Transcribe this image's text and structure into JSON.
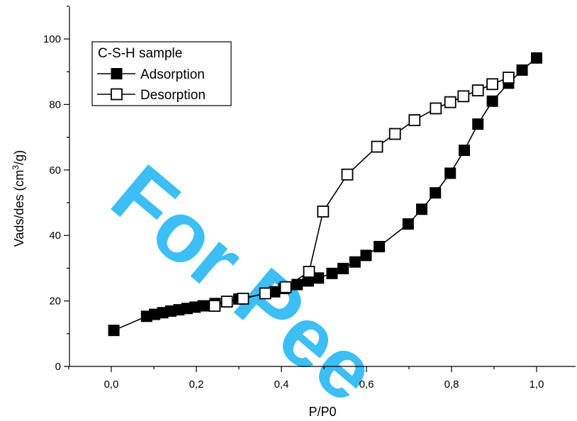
{
  "chart_data": {
    "type": "line",
    "title": "",
    "xlabel": "P/P0",
    "ylabel": "Vads/des (cm³/g)",
    "ylabel_parts": {
      "main": "Vads/des (cm",
      "sup": "3",
      "end": "/g)"
    },
    "xlim": [
      -0.1,
      1.1
    ],
    "ylim": [
      0,
      110
    ],
    "x_ticks": [
      0.0,
      0.2,
      0.4,
      0.6,
      0.8,
      1.0
    ],
    "x_tick_labels": [
      "0,0",
      "0,2",
      "0,4",
      "0,6",
      "0,8",
      "1,0"
    ],
    "y_ticks": [
      0,
      20,
      40,
      60,
      80,
      100
    ],
    "y_tick_labels": [
      "0",
      "20",
      "40",
      "60",
      "80",
      "100"
    ],
    "grid": false,
    "legend": {
      "title": "C-S-H sample",
      "placement": "top-left"
    },
    "series": [
      {
        "name": "Adsorption",
        "marker": "filled-square",
        "color": "#000000",
        "x": [
          0.006,
          0.083,
          0.102,
          0.121,
          0.14,
          0.159,
          0.178,
          0.197,
          0.216,
          0.244,
          0.272,
          0.3,
          0.384,
          0.406,
          0.437,
          0.463,
          0.487,
          0.519,
          0.545,
          0.573,
          0.599,
          0.63,
          0.698,
          0.73,
          0.762,
          0.797,
          0.83,
          0.862,
          0.896,
          0.934,
          0.966,
          1.0
        ],
        "y": [
          11.0,
          15.3,
          15.9,
          16.4,
          16.9,
          17.3,
          17.7,
          18.1,
          18.5,
          19.2,
          19.8,
          20.6,
          22.8,
          23.8,
          25.0,
          26.1,
          27.0,
          28.4,
          29.9,
          31.9,
          33.9,
          36.6,
          43.5,
          48.0,
          53.0,
          59.0,
          66.0,
          74.0,
          81.0,
          86.5,
          90.5,
          94.2
        ]
      },
      {
        "name": "Desorption",
        "marker": "open-square",
        "color": "#000000",
        "x": [
          0.243,
          0.272,
          0.31,
          0.362,
          0.41,
          0.465,
          0.498,
          0.555,
          0.625,
          0.667,
          0.713,
          0.763,
          0.797,
          0.828,
          0.862,
          0.896,
          0.934
        ],
        "y": [
          18.5,
          19.8,
          20.7,
          22.3,
          24.2,
          28.9,
          47.3,
          58.6,
          67.1,
          71.0,
          75.2,
          78.8,
          80.7,
          82.5,
          84.3,
          86.2,
          88.2
        ]
      }
    ],
    "watermark": "For Pee"
  }
}
